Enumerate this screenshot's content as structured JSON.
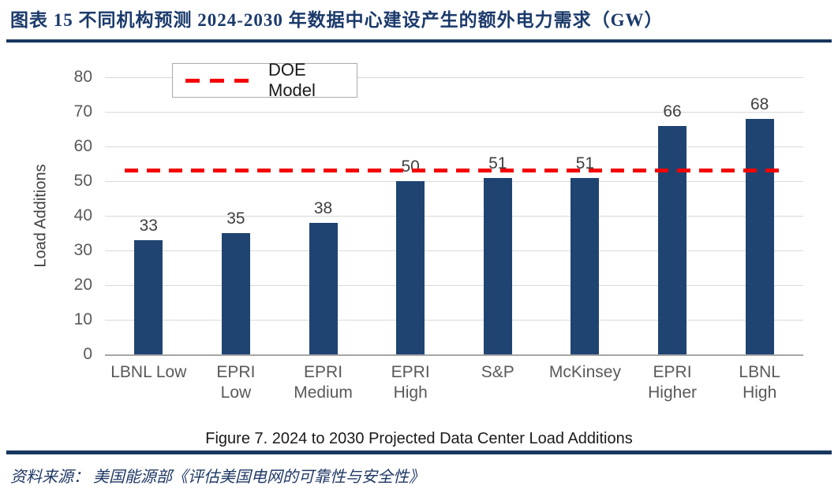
{
  "header": {
    "title": "图表 15  不同机构预测 2024-2030 年数据中心建设产生的额外电力需求（GW）"
  },
  "footer": {
    "source": "资料来源： 美国能源部《评估美国电网的可靠性与安全性》"
  },
  "chart_data": {
    "type": "bar",
    "caption": "Figure 7. 2024 to 2030 Projected Data Center Load Additions",
    "xlabel": "",
    "ylabel": "Load Additions",
    "ylim": [
      0,
      80
    ],
    "yticks": [
      0,
      10,
      20,
      30,
      40,
      50,
      60,
      70,
      80
    ],
    "grid": true,
    "categories": [
      "LBNL Low",
      "EPRI\nLow",
      "EPRI\nMedium",
      "EPRI\nHigh",
      "S&P",
      "McKinsey",
      "EPRI\nHigher",
      "LBNL\nHigh"
    ],
    "values": [
      33,
      35,
      38,
      50,
      51,
      51,
      66,
      68
    ],
    "reference_line": {
      "label": "DOE Model",
      "value": 53,
      "style": "dashed",
      "color": "#F40000"
    },
    "legend": {
      "position": "top-left",
      "entries": [
        "DOE Model"
      ]
    },
    "colors": {
      "bar": "#1F4472",
      "reference_line": "#F40000",
      "gridline": "#D9D9D9",
      "axis": "#A6A6A6",
      "tick_label": "#595959",
      "value_label": "#404040",
      "title_navy": "#1B3A6B",
      "rule_navy": "#17375E"
    }
  }
}
